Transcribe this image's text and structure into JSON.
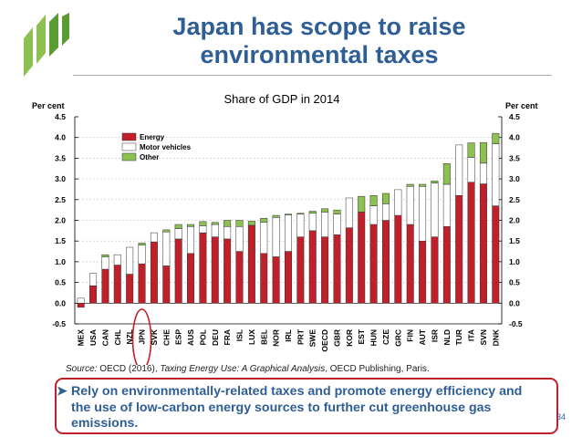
{
  "slide": {
    "title_line1": "Japan has scope to raise",
    "title_line2": "environmental taxes",
    "source_prefix": "Source:",
    "source_text": "OECD (2016), ",
    "source_italic": "Taxing Energy Use: A Graphical Analysis",
    "source_suffix": ", OECD Publishing, Paris.",
    "bullet_text": "Rely on environmentally-related taxes and promote energy efficiency and the use of low-carbon energy sources to further cut greenhouse gas emissions.",
    "page_number": "34"
  },
  "colors": {
    "title": "#2f5e95",
    "energy": "#c0202a",
    "motor_vehicles": "#ffffff",
    "other": "#8cc152",
    "highlight": "#c0202a"
  },
  "chart_data": {
    "type": "bar",
    "stacked": true,
    "title": "Share of GDP in 2014",
    "ylabel_left": "Per cent",
    "ylabel_right": "Per cent",
    "ylim": [
      -0.5,
      4.5
    ],
    "yticks": [
      "-0.5",
      "0.0",
      "0.5",
      "1.0",
      "1.5",
      "2.0",
      "2.5",
      "3.0",
      "3.5",
      "4.0",
      "4.5"
    ],
    "legend_position": "top-left",
    "highlight_category": "JPN",
    "categories": [
      "MEX",
      "USA",
      "CAN",
      "CHL",
      "NZL",
      "JPN",
      "SVK",
      "CHE",
      "ESP",
      "AUS",
      "POL",
      "DEU",
      "FRA",
      "ISL",
      "LUX",
      "BEL",
      "NOR",
      "IRL",
      "PRT",
      "SWE",
      "OECD",
      "GBR",
      "KOR",
      "EST",
      "HUN",
      "CZE",
      "GRC",
      "FIN",
      "AUT",
      "ISR",
      "NLD",
      "TUR",
      "ITA",
      "SVN",
      "DNK"
    ],
    "series": [
      {
        "name": "Energy",
        "values": [
          -0.1,
          0.42,
          0.82,
          0.92,
          0.7,
          0.95,
          1.48,
          0.9,
          1.55,
          1.2,
          1.7,
          1.6,
          1.55,
          1.25,
          1.88,
          1.2,
          1.12,
          1.25,
          1.6,
          1.75,
          1.6,
          1.65,
          1.82,
          2.2,
          1.9,
          2.0,
          2.12,
          1.9,
          1.5,
          1.6,
          1.85,
          2.6,
          2.92,
          2.88,
          2.35
        ]
      },
      {
        "name": "Motor vehicles",
        "values": [
          0.12,
          0.3,
          0.3,
          0.25,
          0.65,
          0.45,
          0.22,
          0.82,
          0.25,
          0.65,
          0.17,
          0.3,
          0.3,
          0.6,
          0.0,
          0.75,
          0.95,
          0.88,
          0.55,
          0.42,
          0.6,
          0.5,
          0.72,
          0.0,
          0.45,
          0.4,
          0.62,
          0.92,
          1.32,
          1.3,
          1.02,
          1.22,
          0.6,
          0.5,
          1.5
        ]
      },
      {
        "name": "Other",
        "values": [
          0.0,
          0.0,
          0.05,
          0.0,
          0.0,
          0.05,
          0.0,
          0.05,
          0.1,
          0.05,
          0.1,
          0.05,
          0.15,
          0.15,
          0.1,
          0.1,
          0.05,
          0.02,
          0.02,
          0.05,
          0.08,
          0.1,
          0.0,
          0.38,
          0.25,
          0.25,
          0.0,
          0.05,
          0.05,
          0.05,
          0.5,
          0.0,
          0.35,
          0.5,
          0.25
        ]
      }
    ]
  }
}
